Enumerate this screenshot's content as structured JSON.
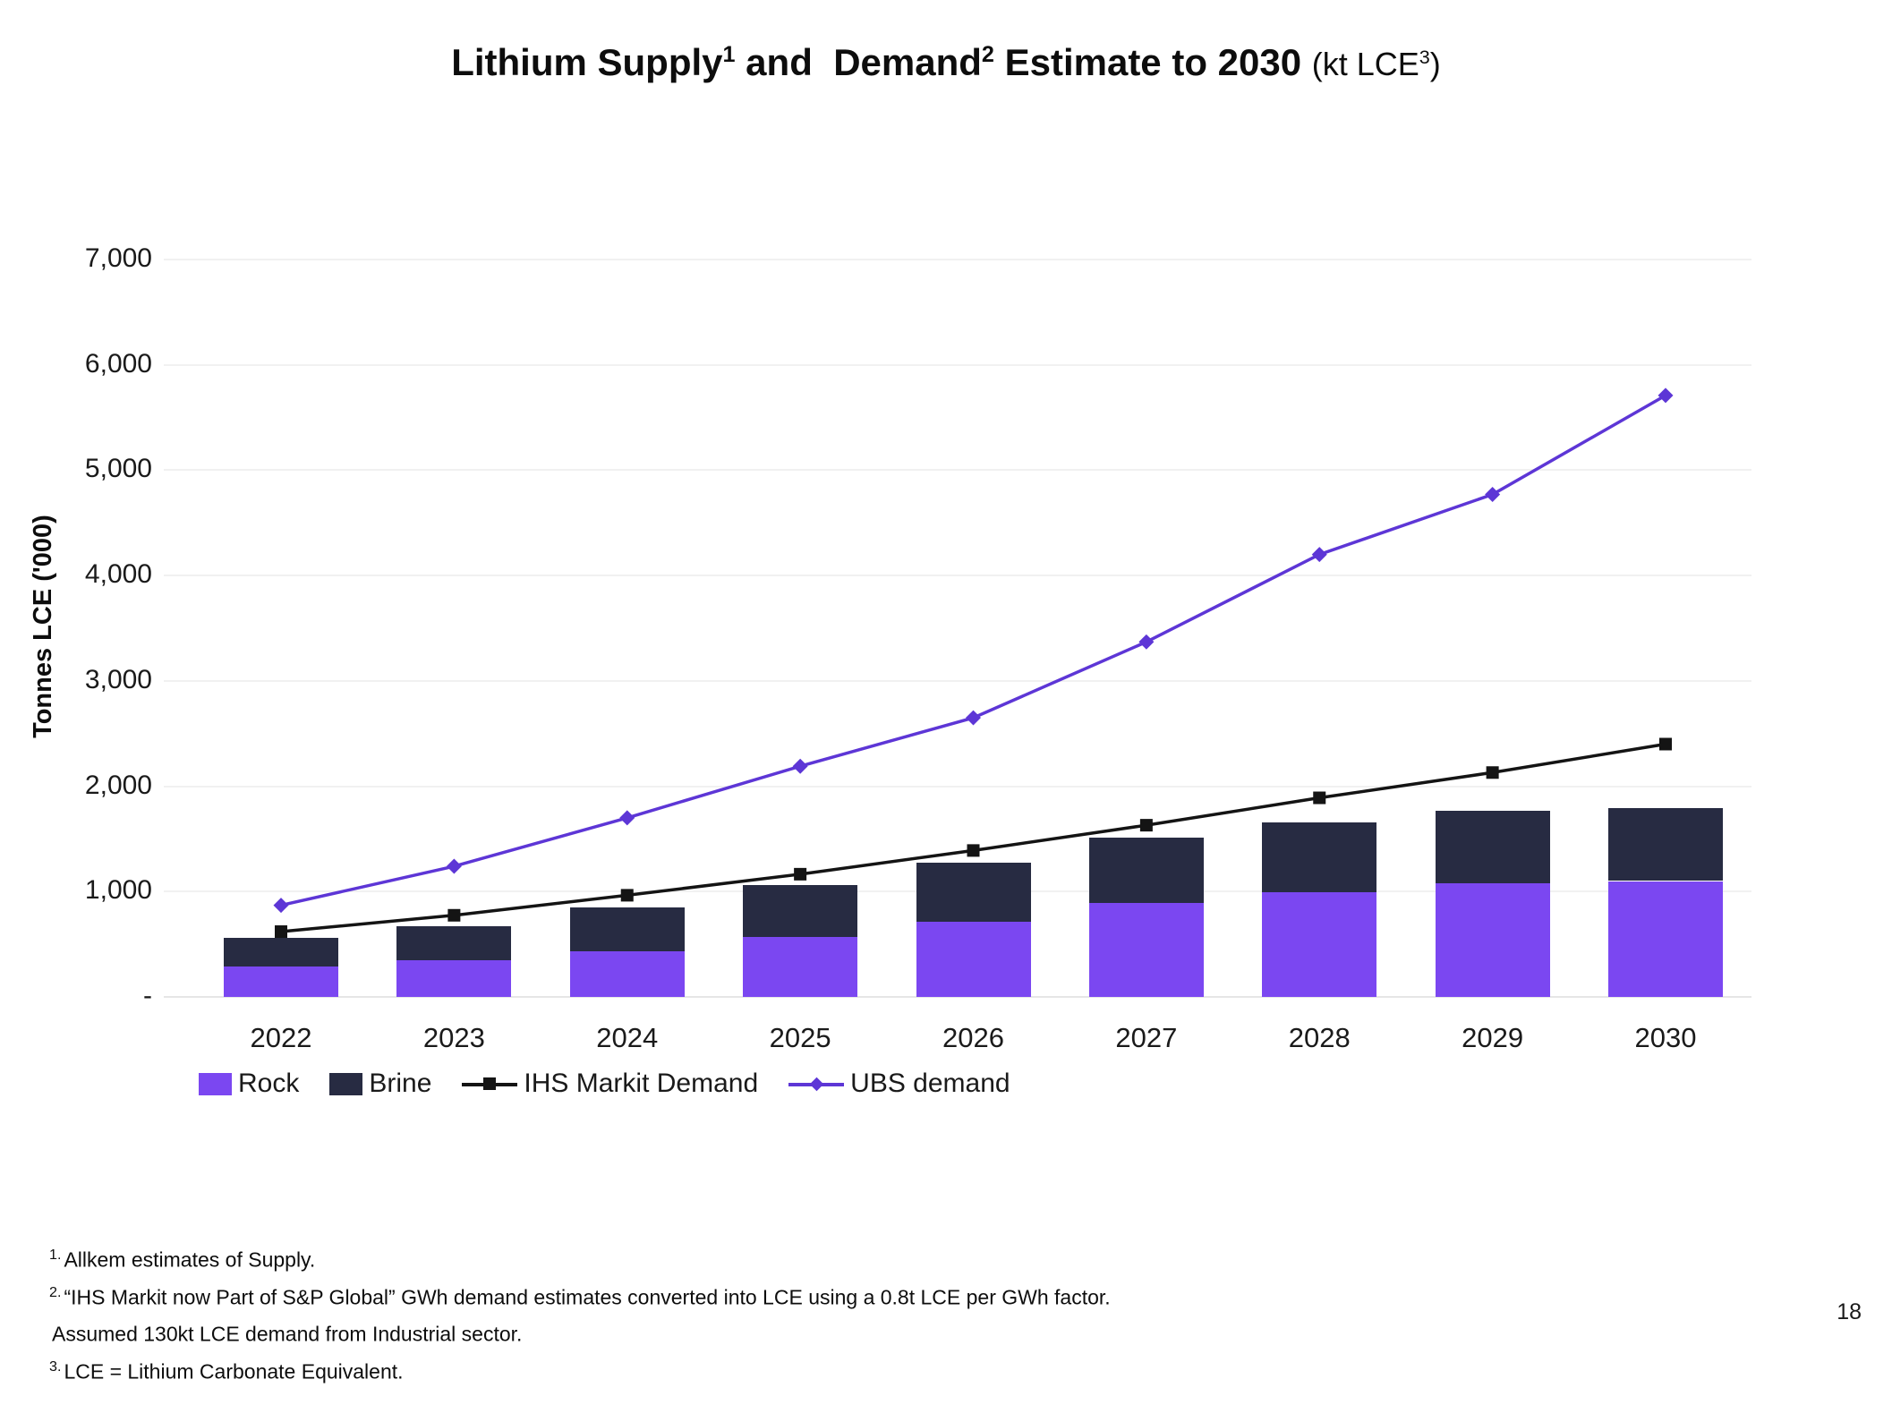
{
  "title": {
    "part1": "Lithium Supply",
    "sup1": "1",
    "part2": " and  Demand",
    "sup2": "2",
    "part3": " Estimate to 2030 ",
    "unit_prefix": "(kt LCE",
    "unit_sup": "3",
    "unit_suffix": ")"
  },
  "chart_data": {
    "type": "combo-stacked-bar-line",
    "categories": [
      "2022",
      "2023",
      "2024",
      "2025",
      "2026",
      "2027",
      "2028",
      "2029",
      "2030"
    ],
    "series": [
      {
        "name": "Rock",
        "type": "bar",
        "stack": "supply",
        "color": "#7b47f1",
        "values": [
          290,
          345,
          430,
          565,
          710,
          890,
          990,
          1080,
          1100
        ]
      },
      {
        "name": "Brine",
        "type": "bar",
        "stack": "supply",
        "color": "#272b42",
        "values": [
          270,
          330,
          420,
          500,
          565,
          620,
          670,
          690,
          695
        ]
      },
      {
        "name": "IHS Markit Demand",
        "type": "line",
        "marker": "square",
        "color": "#141414",
        "values": [
          620,
          775,
          965,
          1165,
          1390,
          1630,
          1890,
          2130,
          2400
        ]
      },
      {
        "name": "UBS demand",
        "type": "line",
        "marker": "diamond",
        "color": "#5d36d6",
        "values": [
          870,
          1240,
          1700,
          2190,
          2650,
          3370,
          4200,
          4770,
          5710
        ]
      }
    ],
    "ylabel": "Tonnes LCE ('000)",
    "ylim": [
      0,
      7000
    ],
    "ytick_interval": 1000,
    "ytick_labels": [
      "-",
      "1,000",
      "2,000",
      "3,000",
      "4,000",
      "5,000",
      "6,000",
      "7,000"
    ],
    "grid": "horizontal",
    "legend_position": "bottom-left"
  },
  "footnotes": [
    {
      "sup": "1.",
      "text": "Allkem estimates of Supply."
    },
    {
      "sup": "2.",
      "text": "“IHS Markit now Part of S&P Global” GWh demand estimates converted into LCE using a 0.8t LCE per GWh factor."
    },
    {
      "sup": "",
      "text": "Assumed 130kt LCE demand from Industrial sector."
    },
    {
      "sup": "3.",
      "text": "LCE = Lithium Carbonate Equivalent."
    }
  ],
  "page": {
    "number": "18"
  }
}
